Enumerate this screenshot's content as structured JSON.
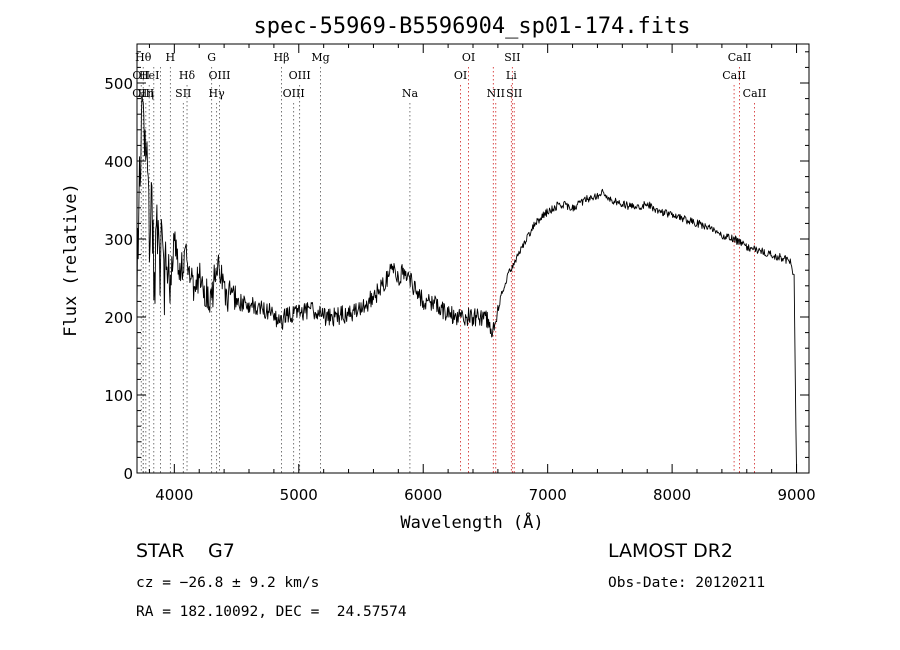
{
  "chart_data": {
    "type": "line",
    "title": "spec-55969-B5596904_sp01-174.fits",
    "xlabel": "Wavelength (Å)",
    "ylabel": "Flux (relative)",
    "xlim": [
      3700,
      9100
    ],
    "ylim": [
      0,
      550
    ],
    "x_ticks": [
      4000,
      5000,
      6000,
      7000,
      8000,
      9000
    ],
    "y_ticks": [
      0,
      100,
      200,
      300,
      400,
      500
    ],
    "grid": false,
    "series": [
      {
        "x": [
          3700,
          3720,
          3740,
          3760,
          3780,
          3800,
          3820,
          3840,
          3860,
          3880,
          3900,
          3920,
          3940,
          3960,
          3980,
          4000,
          4050,
          4100,
          4150,
          4200,
          4250,
          4300,
          4340,
          4400,
          4500,
          4600,
          4700,
          4800,
          4850,
          4900,
          5000,
          5100,
          5200,
          5300,
          5400,
          5500,
          5600,
          5700,
          5750,
          5800,
          5850,
          5900,
          5950,
          6000,
          6100,
          6200,
          6300,
          6400,
          6500,
          6550,
          6600,
          6650,
          6700,
          6800,
          6900,
          7000,
          7100,
          7200,
          7300,
          7400,
          7450,
          7500,
          7600,
          7700,
          7800,
          7900,
          8000,
          8100,
          8200,
          8300,
          8400,
          8500,
          8600,
          8700,
          8800,
          8900,
          8950,
          8980,
          9000
        ],
        "y": [
          250,
          370,
          460,
          430,
          400,
          300,
          350,
          230,
          330,
          250,
          310,
          230,
          290,
          260,
          240,
          300,
          260,
          280,
          240,
          250,
          230,
          220,
          275,
          230,
          220,
          215,
          210,
          205,
          190,
          205,
          205,
          210,
          200,
          200,
          205,
          210,
          225,
          245,
          265,
          250,
          260,
          245,
          230,
          220,
          215,
          205,
          200,
          200,
          200,
          185,
          210,
          240,
          260,
          290,
          320,
          335,
          345,
          340,
          350,
          355,
          360,
          350,
          345,
          340,
          345,
          335,
          330,
          325,
          320,
          315,
          305,
          300,
          290,
          285,
          280,
          275,
          270,
          250,
          0
        ]
      }
    ],
    "lines": [
      {
        "x": 3734,
        "label": "OII",
        "row": 1
      },
      {
        "x": 3750,
        "label": "Hθ",
        "row": 0
      },
      {
        "x": 3750,
        "label": "OIII",
        "row": 2
      },
      {
        "x": 3771,
        "label": "Hη",
        "row": 2
      },
      {
        "x": 3798,
        "label": "HeI",
        "row": 1
      },
      {
        "x": 3835,
        "label": "",
        "row": 0
      },
      {
        "x": 3889,
        "label": "",
        "row": 0
      },
      {
        "x": 3968,
        "label": "H",
        "row": 0
      },
      {
        "x": 4072,
        "label": "SII",
        "row": 2
      },
      {
        "x": 4102,
        "label": "Hδ",
        "row": 1
      },
      {
        "x": 4300,
        "label": "G",
        "row": 0
      },
      {
        "x": 4340,
        "label": "Hγ",
        "row": 2
      },
      {
        "x": 4363,
        "label": "OIII",
        "row": 1
      },
      {
        "x": 4861,
        "label": "Hβ",
        "row": 0
      },
      {
        "x": 4959,
        "label": "OIII",
        "row": 2
      },
      {
        "x": 5007,
        "label": "OIII",
        "row": 1
      },
      {
        "x": 5175,
        "label": "Mg",
        "row": 0
      },
      {
        "x": 5893,
        "label": "Na",
        "row": 2
      },
      {
        "x": 6300,
        "label": "OI",
        "row": 1
      },
      {
        "x": 6364,
        "label": "OI",
        "row": 0
      },
      {
        "x": 6563,
        "label": "",
        "row": 0
      },
      {
        "x": 6583,
        "label": "NII",
        "row": 2
      },
      {
        "x": 6708,
        "label": "Li",
        "row": 1
      },
      {
        "x": 6716,
        "label": "SII",
        "row": 0
      },
      {
        "x": 6731,
        "label": "SII",
        "row": 2
      },
      {
        "x": 8498,
        "label": "CaII",
        "row": 1
      },
      {
        "x": 8542,
        "label": "CaII",
        "row": 0
      },
      {
        "x": 8662,
        "label": "CaII",
        "row": 2
      }
    ]
  },
  "info": {
    "class_label": "STAR",
    "subclass": "G7",
    "survey": "LAMOST DR2",
    "cz": "cz = −26.8 ± 9.2 km/s",
    "obs_date": "Obs-Date: 20120211",
    "coords": "RA = 182.10092, DEC =  24.57574"
  }
}
